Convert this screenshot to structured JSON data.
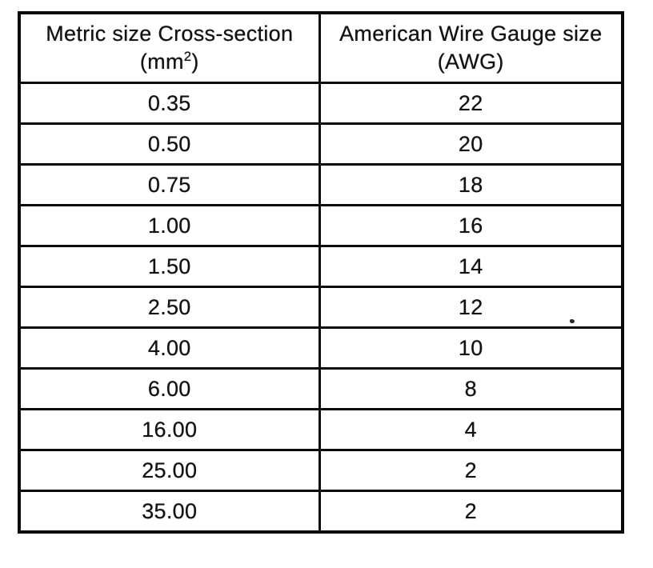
{
  "table": {
    "columns": [
      {
        "title": "Metric size Cross-section",
        "unit_pre": "(mm",
        "unit_sup": "2",
        "unit_post": ")"
      },
      {
        "title": "American Wire Gauge size",
        "unit": "(AWG)"
      }
    ],
    "rows": [
      {
        "metric": "0.35",
        "awg": "22"
      },
      {
        "metric": "0.50",
        "awg": "20"
      },
      {
        "metric": "0.75",
        "awg": "18"
      },
      {
        "metric": "1.00",
        "awg": "16"
      },
      {
        "metric": "1.50",
        "awg": "14"
      },
      {
        "metric": "2.50",
        "awg": "12"
      },
      {
        "metric": "4.00",
        "awg": "10"
      },
      {
        "metric": "6.00",
        "awg": "8"
      },
      {
        "metric": "16.00",
        "awg": "4"
      },
      {
        "metric": "25.00",
        "awg": "2"
      },
      {
        "metric": "35.00",
        "awg": "2"
      }
    ],
    "colors": {
      "border": "#0a0a0a",
      "text": "#121212",
      "background": "#ffffff"
    }
  }
}
